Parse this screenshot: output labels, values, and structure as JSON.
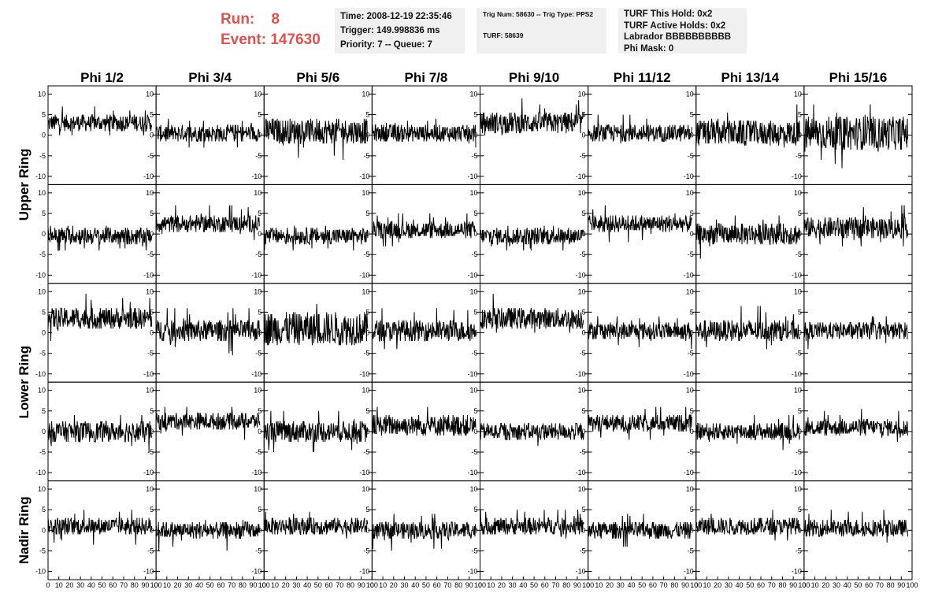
{
  "header": {
    "run_label": "Run:",
    "run_value": "8",
    "event_label": "Event:",
    "event_value": "147630"
  },
  "info_box_1": {
    "time": "Time: 2008-12-19 22:35:46",
    "trigger": "Trigger: 149.998836 ms",
    "priority": "Priority: 7 -- Queue: 7"
  },
  "info_box_2": {
    "trig": "Trig Num: 58630 -- Trig Type: PPS2",
    "turf": "TURF: 58639"
  },
  "info_box_3": {
    "hold": "TURF This Hold: 0x2",
    "active": "TURF Active Holds: 0x2",
    "labrador": "Labrador BBBBBBBBBB",
    "mask": "Phi Mask: 0"
  },
  "colors": {
    "header_text": "#d9534f",
    "info_background": "#f0f0f0",
    "trace": "#000000"
  },
  "chart_data": {
    "type": "line",
    "columns": [
      "Phi 1/2",
      "Phi 3/4",
      "Phi 5/6",
      "Phi 7/8",
      "Phi 9/10",
      "Phi 11/12",
      "Phi 13/14",
      "Phi 15/16"
    ],
    "rows": [
      "Upper Ring",
      "Upper Ring",
      "Lower Ring",
      "Lower Ring",
      "Nadir Ring"
    ],
    "row_labels": [
      "Upper Ring",
      "Lower Ring",
      "Nadir Ring"
    ],
    "xlim": [
      0,
      100
    ],
    "ylim": [
      -12,
      12
    ],
    "x_tick_labels": [
      "0",
      "10",
      "20",
      "30",
      "40",
      "50",
      "60",
      "70",
      "80",
      "90",
      "100"
    ],
    "y_tick_labels": [
      "10",
      "5",
      "0",
      "-5",
      "-10"
    ],
    "panels": [
      [
        {
          "offset": 3.0,
          "amp": 2.0,
          "range": [
            0,
            10
          ]
        },
        {
          "offset": 0.5,
          "amp": 2.0,
          "range": [
            -3,
            4
          ]
        },
        {
          "offset": 1.0,
          "amp": 3.0,
          "range": [
            -6,
            7
          ]
        },
        {
          "offset": 0.5,
          "amp": 2.0,
          "range": [
            -3,
            4
          ]
        },
        {
          "offset": 3.0,
          "amp": 2.5,
          "range": [
            0,
            10
          ]
        },
        {
          "offset": 0.5,
          "amp": 2.0,
          "range": [
            -3,
            5
          ]
        },
        {
          "offset": 0.5,
          "amp": 3.0,
          "range": [
            -7,
            8
          ]
        },
        {
          "offset": 0.5,
          "amp": 4.0,
          "range": [
            -8,
            8
          ]
        }
      ],
      [
        {
          "offset": -0.5,
          "amp": 2.0,
          "range": [
            -4,
            2
          ]
        },
        {
          "offset": 2.5,
          "amp": 2.0,
          "range": [
            -2,
            8
          ]
        },
        {
          "offset": -0.5,
          "amp": 2.0,
          "range": [
            -4,
            2
          ]
        },
        {
          "offset": 1.0,
          "amp": 2.0,
          "range": [
            -3,
            5
          ]
        },
        {
          "offset": -0.5,
          "amp": 2.0,
          "range": [
            -4,
            2
          ]
        },
        {
          "offset": 2.5,
          "amp": 2.0,
          "range": [
            -2,
            8
          ]
        },
        {
          "offset": 0.0,
          "amp": 2.5,
          "range": [
            -8,
            6
          ]
        },
        {
          "offset": 1.5,
          "amp": 2.5,
          "range": [
            -3,
            8
          ]
        }
      ],
      [
        {
          "offset": 3.5,
          "amp": 2.5,
          "range": [
            -3,
            11
          ]
        },
        {
          "offset": 0.5,
          "amp": 2.5,
          "range": [
            -6,
            6
          ]
        },
        {
          "offset": 1.0,
          "amp": 4.0,
          "range": [
            -8,
            11
          ]
        },
        {
          "offset": 0.5,
          "amp": 2.5,
          "range": [
            -4,
            6
          ]
        },
        {
          "offset": 3.5,
          "amp": 2.5,
          "range": [
            0,
            10
          ]
        },
        {
          "offset": 0.5,
          "amp": 2.0,
          "range": [
            -4,
            4
          ]
        },
        {
          "offset": 0.5,
          "amp": 2.5,
          "range": [
            -4,
            8
          ]
        },
        {
          "offset": 0.5,
          "amp": 2.0,
          "range": [
            -4,
            4
          ]
        }
      ],
      [
        {
          "offset": 0.0,
          "amp": 2.5,
          "range": [
            -5,
            4
          ]
        },
        {
          "offset": 2.5,
          "amp": 2.0,
          "range": [
            -4,
            6
          ]
        },
        {
          "offset": 0.0,
          "amp": 2.5,
          "range": [
            -5,
            5
          ]
        },
        {
          "offset": 1.5,
          "amp": 2.5,
          "range": [
            -3,
            8
          ]
        },
        {
          "offset": 0.0,
          "amp": 2.0,
          "range": [
            -5,
            2
          ]
        },
        {
          "offset": 2.0,
          "amp": 2.0,
          "range": [
            -2,
            6
          ]
        },
        {
          "offset": 0.0,
          "amp": 2.0,
          "range": [
            -5,
            4
          ]
        },
        {
          "offset": 1.0,
          "amp": 2.0,
          "range": [
            -3,
            10
          ]
        }
      ],
      [
        {
          "offset": 1.0,
          "amp": 2.0,
          "range": [
            -4,
            5
          ]
        },
        {
          "offset": 0.0,
          "amp": 2.0,
          "range": [
            -6,
            4
          ]
        },
        {
          "offset": 1.0,
          "amp": 2.0,
          "range": [
            -3,
            6
          ]
        },
        {
          "offset": 0.0,
          "amp": 2.0,
          "range": [
            -5,
            4
          ]
        },
        {
          "offset": 1.0,
          "amp": 2.0,
          "range": [
            -3,
            5
          ]
        },
        {
          "offset": 0.0,
          "amp": 2.0,
          "range": [
            -4,
            4
          ]
        },
        {
          "offset": 1.0,
          "amp": 2.0,
          "range": [
            -3,
            5
          ]
        },
        {
          "offset": 0.5,
          "amp": 2.0,
          "range": [
            -5,
            5
          ]
        }
      ]
    ]
  }
}
